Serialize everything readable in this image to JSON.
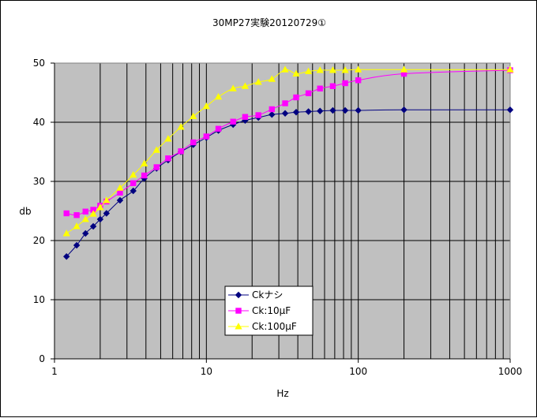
{
  "chart_data": {
    "type": "line",
    "title": "30MP27実験20120729①",
    "xlabel": "Hz",
    "ylabel": "db",
    "xscale": "log",
    "xlim": [
      1,
      1000
    ],
    "ylim": [
      0,
      50
    ],
    "x_ticks": [
      "1",
      "10",
      "100",
      "1000"
    ],
    "y_ticks": [
      "0",
      "10",
      "20",
      "30",
      "40",
      "50"
    ],
    "grid": true,
    "plot_background": "#c0c0c0",
    "legend_position": "center-bottom",
    "series": [
      {
        "name": "Ckナシ",
        "color": "#000080",
        "marker": "diamond",
        "x": [
          1.2,
          1.4,
          1.6,
          1.8,
          2.0,
          2.2,
          2.7,
          3.3,
          3.9,
          4.7,
          5.6,
          6.8,
          8.2,
          10,
          12,
          15,
          18,
          22,
          27,
          33,
          39,
          47,
          56,
          68,
          82,
          100,
          200,
          1000
        ],
        "y": [
          17.3,
          19.2,
          21.2,
          22.4,
          23.6,
          24.6,
          26.8,
          28.4,
          30.5,
          32.2,
          33.6,
          35.0,
          36.2,
          37.4,
          38.6,
          39.6,
          40.3,
          40.8,
          41.3,
          41.5,
          41.7,
          41.8,
          41.9,
          42.0,
          42.0,
          42.0,
          42.1,
          42.1
        ]
      },
      {
        "name": "Ck:10μF",
        "color": "#ff00ff",
        "marker": "square",
        "x": [
          1.2,
          1.4,
          1.6,
          1.8,
          2.0,
          2.2,
          2.7,
          3.3,
          3.9,
          4.7,
          5.6,
          6.8,
          8.2,
          10,
          12,
          15,
          18,
          22,
          27,
          33,
          39,
          47,
          56,
          68,
          82,
          100,
          200,
          1000
        ],
        "y": [
          24.6,
          24.3,
          24.9,
          25.2,
          25.9,
          26.6,
          28.1,
          29.7,
          31.0,
          32.4,
          33.9,
          35.1,
          36.6,
          37.6,
          38.9,
          40.1,
          40.9,
          41.2,
          42.2,
          43.2,
          44.2,
          44.9,
          45.7,
          46.1,
          46.6,
          47.1,
          48.2,
          48.8
        ]
      },
      {
        "name": "Ck:100μF",
        "color": "#ffff00",
        "marker": "triangle",
        "x": [
          1.2,
          1.4,
          1.6,
          1.8,
          2.0,
          2.2,
          2.7,
          3.3,
          3.9,
          4.7,
          5.6,
          6.8,
          8.2,
          10,
          12,
          15,
          18,
          22,
          27,
          33,
          39,
          47,
          56,
          68,
          82,
          100,
          200,
          1000
        ],
        "y": [
          21.2,
          22.4,
          23.6,
          24.5,
          25.6,
          26.8,
          28.9,
          31.1,
          33.0,
          35.3,
          37.2,
          39.2,
          41.0,
          42.7,
          44.3,
          45.7,
          46.1,
          46.8,
          47.3,
          48.9,
          48.2,
          48.6,
          48.8,
          48.8,
          48.8,
          48.9,
          48.9,
          48.9
        ]
      }
    ]
  }
}
